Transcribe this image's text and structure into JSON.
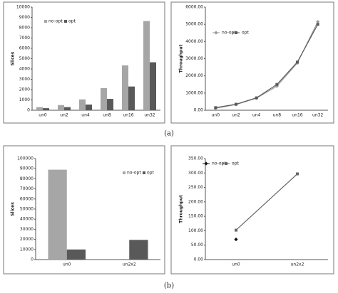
{
  "captions": [
    "(a)",
    "(b)"
  ],
  "chart_data": [
    {
      "type": "bar",
      "y_label": "Slices",
      "categories": [
        "un0",
        "un2",
        "un4",
        "un8",
        "un16",
        "un32"
      ],
      "series": [
        {
          "name": "no-opt",
          "color": "#a6a6a6",
          "values": [
            300,
            500,
            1050,
            2150,
            4350,
            8650
          ]
        },
        {
          "name": "opt",
          "color": "#595959",
          "values": [
            200,
            300,
            550,
            1100,
            2300,
            4650
          ]
        }
      ],
      "ylim": [
        0,
        10000
      ],
      "yticks": [
        0,
        1000,
        2000,
        3000,
        4000,
        5000,
        6000,
        7000,
        8000,
        9000,
        10000
      ],
      "grid": false
    },
    {
      "type": "line",
      "y_label": "Throughput",
      "categories": [
        "un0",
        "un2",
        "un4",
        "un8",
        "un16",
        "un32"
      ],
      "series": [
        {
          "name": "no-opt",
          "color": "#9a9a9a",
          "marker": "diamond",
          "values": [
            120,
            330,
            700,
            1400,
            2750,
            5150
          ]
        },
        {
          "name": "opt",
          "color": "#5a5a5a",
          "marker": "square",
          "values": [
            150,
            350,
            720,
            1500,
            2800,
            5000
          ]
        }
      ],
      "ylim": [
        0,
        6000
      ],
      "yticks": [
        {
          "value": 0,
          "label": "0.00"
        },
        {
          "value": 1000,
          "label": "1000.00"
        },
        {
          "value": 2000,
          "label": "2000.00"
        },
        {
          "value": 3000,
          "label": "3000.00"
        },
        {
          "value": 4000,
          "label": "4000.00"
        },
        {
          "value": 5000,
          "label": "5000.00"
        },
        {
          "value": 6000,
          "label": "6000.00"
        }
      ],
      "grid": false
    },
    {
      "type": "bar",
      "y_label": "Slices",
      "categories": [
        "un0",
        "un2x2"
      ],
      "series": [
        {
          "name": "no-opt",
          "color": "#a6a6a6",
          "values": [
            89000,
            null
          ]
        },
        {
          "name": "opt",
          "color": "#595959",
          "values": [
            10000,
            19500
          ]
        }
      ],
      "ylim": [
        0,
        100000
      ],
      "yticks": [
        0,
        10000,
        20000,
        30000,
        40000,
        50000,
        60000,
        70000,
        80000,
        90000,
        100000
      ],
      "grid": false
    },
    {
      "type": "line",
      "y_label": "Throughput",
      "categories": [
        "un0",
        "un2x2"
      ],
      "series": [
        {
          "name": "no-opt",
          "color": "#111111",
          "marker": "diamond",
          "values": [
            70,
            null
          ]
        },
        {
          "name": "opt",
          "color": "#666666",
          "marker": "square",
          "values": [
            102,
            297
          ]
        }
      ],
      "ylim": [
        0,
        350
      ],
      "yticks": [
        {
          "value": 0,
          "label": "0.00"
        },
        {
          "value": 50,
          "label": "50.00"
        },
        {
          "value": 100,
          "label": "100.00"
        },
        {
          "value": 150,
          "label": "150.00"
        },
        {
          "value": 200,
          "label": "200.00"
        },
        {
          "value": 250,
          "label": "250.00"
        },
        {
          "value": 300,
          "label": "300.00"
        },
        {
          "value": 350,
          "label": "350.00"
        }
      ],
      "grid": false
    }
  ]
}
